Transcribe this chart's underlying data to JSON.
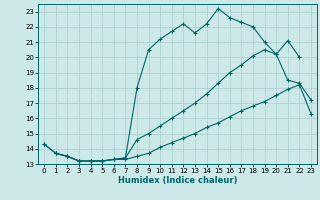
{
  "xlabel": "Humidex (Indice chaleur)",
  "bg_color": "#cce8e8",
  "grid_color": "#aacece",
  "line_color": "#006666",
  "xlim": [
    -0.5,
    23.5
  ],
  "ylim": [
    13,
    23.5
  ],
  "yticks": [
    13,
    14,
    15,
    16,
    17,
    18,
    19,
    20,
    21,
    22,
    23
  ],
  "xticks": [
    0,
    1,
    2,
    3,
    4,
    5,
    6,
    7,
    8,
    9,
    10,
    11,
    12,
    13,
    14,
    15,
    16,
    17,
    18,
    19,
    20,
    21,
    22,
    23
  ],
  "curve1_x": [
    0,
    1,
    2,
    3,
    4,
    5,
    6,
    7,
    8,
    9,
    10,
    11,
    12,
    13,
    14,
    15,
    16,
    17,
    18,
    19,
    20,
    21,
    22
  ],
  "curve1_y": [
    14.3,
    13.7,
    13.5,
    13.2,
    13.2,
    13.2,
    13.3,
    13.4,
    18.0,
    20.5,
    21.2,
    21.7,
    22.2,
    21.6,
    22.2,
    23.2,
    22.6,
    22.3,
    22.0,
    21.0,
    20.2,
    21.1,
    20.0
  ],
  "curve2_x": [
    0,
    1,
    2,
    3,
    4,
    5,
    6,
    7,
    8,
    9,
    10,
    11,
    12,
    13,
    14,
    15,
    16,
    17,
    18,
    19,
    20,
    21,
    22,
    23
  ],
  "curve2_y": [
    14.3,
    13.7,
    13.5,
    13.2,
    13.2,
    13.2,
    13.3,
    13.4,
    14.6,
    15.0,
    15.5,
    16.0,
    16.5,
    17.0,
    17.6,
    18.3,
    19.0,
    19.5,
    20.1,
    20.5,
    20.2,
    18.5,
    18.3,
    17.2
  ],
  "curve3_x": [
    1,
    2,
    3,
    4,
    5,
    6,
    7,
    8,
    9,
    10,
    11,
    12,
    13,
    14,
    15,
    16,
    17,
    18,
    19,
    20,
    21,
    22,
    23
  ],
  "curve3_y": [
    13.7,
    13.5,
    13.2,
    13.2,
    13.2,
    13.3,
    13.3,
    13.5,
    13.7,
    14.1,
    14.4,
    14.7,
    15.0,
    15.4,
    15.7,
    16.1,
    16.5,
    16.8,
    17.1,
    17.5,
    17.9,
    18.2,
    16.3
  ]
}
